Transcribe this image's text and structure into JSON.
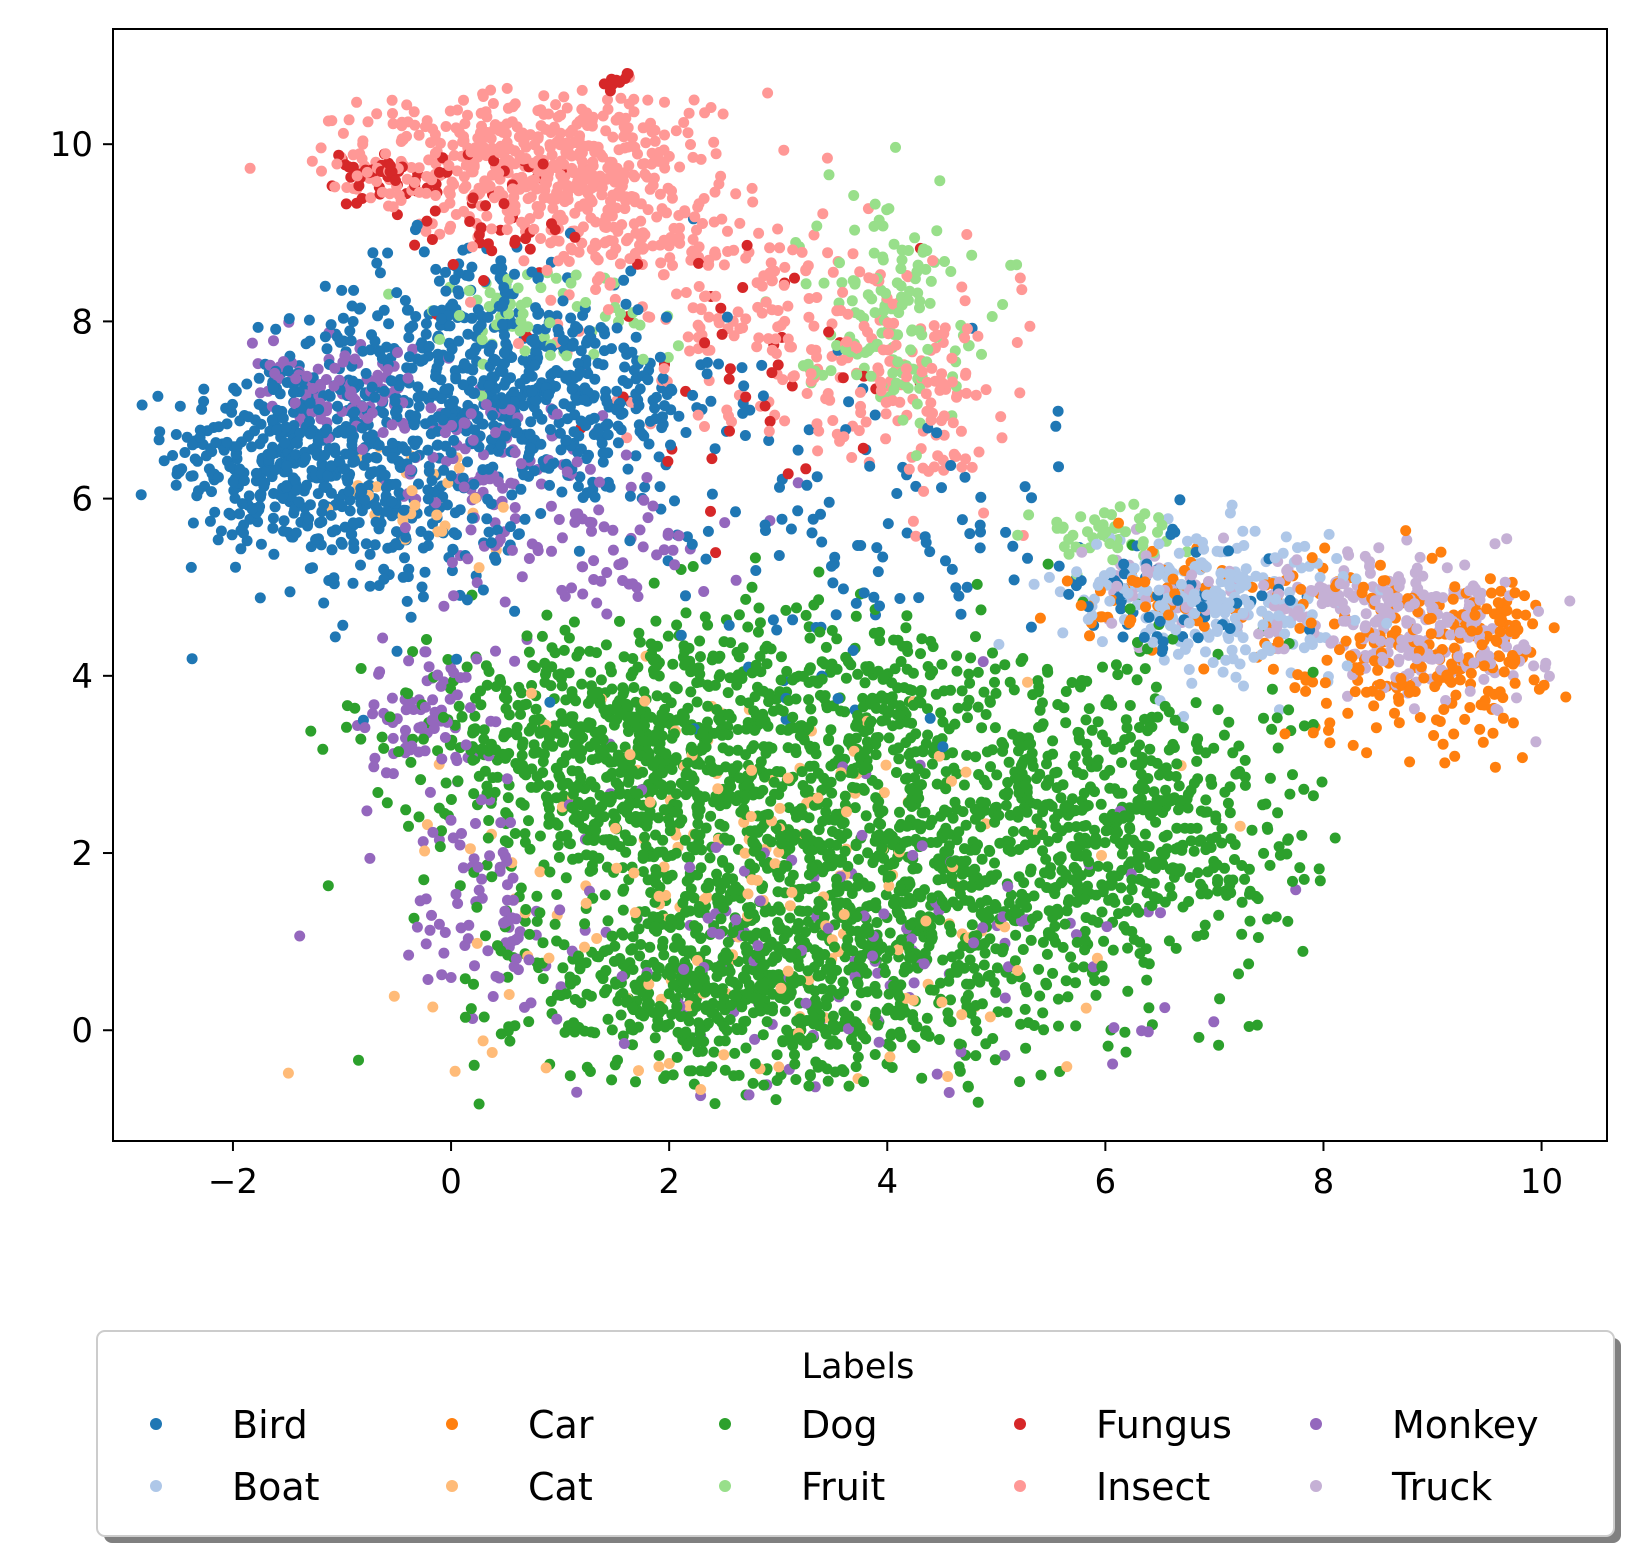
{
  "chart_data": {
    "type": "scatter",
    "title": "",
    "xlabel": "",
    "ylabel": "",
    "xlim": [
      -3.1,
      10.6
    ],
    "ylim": [
      -1.25,
      11.3
    ],
    "xticks": [
      -2,
      0,
      2,
      4,
      6,
      8,
      10
    ],
    "yticks": [
      0,
      2,
      4,
      6,
      8,
      10
    ],
    "grid": false,
    "legend": {
      "title": "Labels",
      "placement": "below plot, 5 columns",
      "entries": [
        "Bird",
        "Boat",
        "Car",
        "Cat",
        "Dog",
        "Fruit",
        "Fungus",
        "Insect",
        "Monkey",
        "Truck"
      ]
    },
    "series": [
      {
        "name": "Bird",
        "color": "#1f77b4",
        "n": 1400,
        "clusters": [
          {
            "center": [
              -1.6,
              6.5
            ],
            "spread": [
              0.5,
              0.55
            ],
            "share": 0.22
          },
          {
            "center": [
              -0.5,
              6.2
            ],
            "spread": [
              0.6,
              0.7
            ],
            "share": 0.25
          },
          {
            "center": [
              0.9,
              7.1
            ],
            "spread": [
              0.8,
              0.6
            ],
            "share": 0.28
          },
          {
            "center": [
              0.1,
              8.0
            ],
            "spread": [
              0.7,
              0.5
            ],
            "share": 0.12
          },
          {
            "center": [
              3.8,
              5.6
            ],
            "spread": [
              0.9,
              0.9
            ],
            "share": 0.08
          },
          {
            "center": [
              6.5,
              4.9
            ],
            "spread": [
              0.6,
              0.3
            ],
            "share": 0.05
          }
        ]
      },
      {
        "name": "Boat",
        "color": "#aec7e8",
        "n": 260,
        "clusters": [
          {
            "center": [
              6.8,
              5.0
            ],
            "spread": [
              0.6,
              0.35
            ],
            "share": 0.6
          },
          {
            "center": [
              7.3,
              4.6
            ],
            "spread": [
              0.5,
              0.4
            ],
            "share": 0.4
          }
        ]
      },
      {
        "name": "Car",
        "color": "#ff7f0e",
        "n": 320,
        "clusters": [
          {
            "center": [
              8.7,
              4.2
            ],
            "spread": [
              0.6,
              0.5
            ],
            "share": 0.55
          },
          {
            "center": [
              9.5,
              4.4
            ],
            "spread": [
              0.25,
              0.5
            ],
            "share": 0.25
          },
          {
            "center": [
              6.8,
              4.9
            ],
            "spread": [
              0.6,
              0.3
            ],
            "share": 0.2
          }
        ]
      },
      {
        "name": "Cat",
        "color": "#ffbb78",
        "n": 220,
        "clusters": [
          {
            "center": [
              2.8,
              1.6
            ],
            "spread": [
              1.6,
              1.2
            ],
            "share": 0.85
          },
          {
            "center": [
              -0.2,
              6.0
            ],
            "spread": [
              0.4,
              0.3
            ],
            "share": 0.15
          }
        ]
      },
      {
        "name": "Dog",
        "color": "#2ca02c",
        "n": 3000,
        "clusters": [
          {
            "center": [
              1.6,
              3.0
            ],
            "spread": [
              0.9,
              0.8
            ],
            "share": 0.18
          },
          {
            "center": [
              3.0,
              2.2
            ],
            "spread": [
              1.0,
              1.0
            ],
            "share": 0.2
          },
          {
            "center": [
              2.4,
              0.4
            ],
            "spread": [
              0.9,
              0.5
            ],
            "share": 0.15
          },
          {
            "center": [
              4.3,
              1.0
            ],
            "spread": [
              1.0,
              0.8
            ],
            "share": 0.15
          },
          {
            "center": [
              5.6,
              2.5
            ],
            "spread": [
              0.9,
              0.9
            ],
            "share": 0.13
          },
          {
            "center": [
              6.5,
              2.3
            ],
            "spread": [
              0.7,
              0.8
            ],
            "share": 0.09
          },
          {
            "center": [
              3.8,
              3.8
            ],
            "spread": [
              0.8,
              0.5
            ],
            "share": 0.06
          },
          {
            "center": [
              0.5,
              3.4
            ],
            "spread": [
              0.6,
              0.5
            ],
            "share": 0.04
          }
        ]
      },
      {
        "name": "Fruit",
        "color": "#98df8a",
        "n": 260,
        "clusters": [
          {
            "center": [
              4.0,
              8.2
            ],
            "spread": [
              0.4,
              0.6
            ],
            "share": 0.55
          },
          {
            "center": [
              6.0,
              5.6
            ],
            "spread": [
              0.35,
              0.15
            ],
            "share": 0.2
          },
          {
            "center": [
              0.7,
              8.1
            ],
            "spread": [
              0.6,
              0.3
            ],
            "share": 0.25
          }
        ]
      },
      {
        "name": "Fungus",
        "color": "#d62728",
        "n": 140,
        "clusters": [
          {
            "center": [
              -0.6,
              9.6
            ],
            "spread": [
              0.3,
              0.2
            ],
            "share": 0.3
          },
          {
            "center": [
              0.3,
              9.2
            ],
            "spread": [
              0.4,
              0.4
            ],
            "share": 0.3
          },
          {
            "center": [
              2.8,
              7.6
            ],
            "spread": [
              0.8,
              0.8
            ],
            "share": 0.3
          },
          {
            "center": [
              1.5,
              10.7
            ],
            "spread": [
              0.08,
              0.06
            ],
            "share": 0.1
          }
        ]
      },
      {
        "name": "Insect",
        "color": "#ff9896",
        "n": 900,
        "clusters": [
          {
            "center": [
              0.5,
              9.8
            ],
            "spread": [
              0.8,
              0.4
            ],
            "share": 0.4
          },
          {
            "center": [
              1.5,
              9.3
            ],
            "spread": [
              0.6,
              0.6
            ],
            "share": 0.28
          },
          {
            "center": [
              3.0,
              8.0
            ],
            "spread": [
              0.7,
              0.7
            ],
            "share": 0.2
          },
          {
            "center": [
              4.3,
              7.3
            ],
            "spread": [
              0.35,
              0.6
            ],
            "share": 0.12
          }
        ]
      },
      {
        "name": "Monkey",
        "color": "#9467bd",
        "n": 560,
        "clusters": [
          {
            "center": [
              -1.0,
              7.2
            ],
            "spread": [
              0.4,
              0.25
            ],
            "share": 0.18
          },
          {
            "center": [
              0.4,
              6.4
            ],
            "spread": [
              0.5,
              0.4
            ],
            "share": 0.16
          },
          {
            "center": [
              1.2,
              5.4
            ],
            "spread": [
              0.7,
              0.4
            ],
            "share": 0.14
          },
          {
            "center": [
              -0.2,
              3.5
            ],
            "spread": [
              0.3,
              0.4
            ],
            "share": 0.14
          },
          {
            "center": [
              0.3,
              1.5
            ],
            "spread": [
              0.3,
              0.6
            ],
            "share": 0.14
          },
          {
            "center": [
              3.5,
              1.0
            ],
            "spread": [
              1.5,
              1.0
            ],
            "share": 0.24
          }
        ]
      },
      {
        "name": "Truck",
        "color": "#c5b0d5",
        "n": 320,
        "clusters": [
          {
            "center": [
              9.0,
              4.5
            ],
            "spread": [
              0.5,
              0.4
            ],
            "share": 0.6
          },
          {
            "center": [
              8.1,
              4.9
            ],
            "spread": [
              0.5,
              0.2
            ],
            "share": 0.25
          },
          {
            "center": [
              6.6,
              5.0
            ],
            "spread": [
              0.5,
              0.3
            ],
            "share": 0.15
          }
        ]
      }
    ]
  }
}
